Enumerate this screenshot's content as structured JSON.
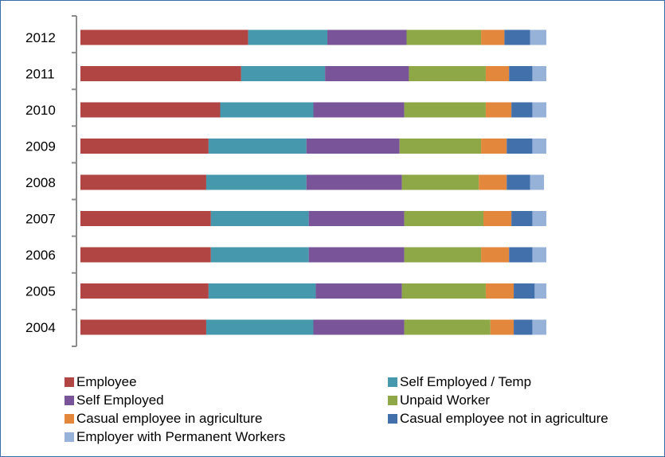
{
  "chart_data": {
    "type": "bar",
    "orientation": "horizontal",
    "stacked": true,
    "title": "",
    "xlabel": "",
    "ylabel": "",
    "xlim": [
      0,
      100
    ],
    "grid": false,
    "legend_position": "bottom",
    "categories": [
      "2012",
      "2011",
      "2010",
      "2009",
      "2008",
      "2007",
      "2006",
      "2005",
      "2004"
    ],
    "series": [
      {
        "name": "Employee",
        "color": "#b04543",
        "values": [
          36,
          34.5,
          30,
          27.5,
          27,
          28,
          28,
          27.5,
          27
        ]
      },
      {
        "name": "Self Employed / Temp",
        "color": "#4699ad",
        "values": [
          17,
          18,
          20,
          21,
          21.5,
          21,
          21,
          23,
          23
        ]
      },
      {
        "name": "Self Employed",
        "color": "#7a5498",
        "values": [
          17,
          18,
          19.5,
          20,
          20.5,
          20.5,
          20.5,
          18.5,
          19.5
        ]
      },
      {
        "name": "Unpaid Worker",
        "color": "#8ea848",
        "values": [
          16,
          16.5,
          17.5,
          17.5,
          16.5,
          17,
          16.5,
          18,
          18.5
        ]
      },
      {
        "name": "Casual employee in agriculture",
        "color": "#e2873c",
        "values": [
          5,
          5,
          5.5,
          5.5,
          6,
          6,
          6,
          6,
          5
        ]
      },
      {
        "name": "Casual employee not in agriculture",
        "color": "#4270aa",
        "values": [
          5.5,
          5,
          4.5,
          5.5,
          5,
          4.5,
          5,
          4.5,
          4
        ]
      },
      {
        "name": "Employer with Permanent Workers",
        "color": "#97b2d8",
        "values": [
          3.5,
          3,
          3,
          3,
          3,
          3,
          3,
          2.5,
          3
        ]
      }
    ]
  }
}
